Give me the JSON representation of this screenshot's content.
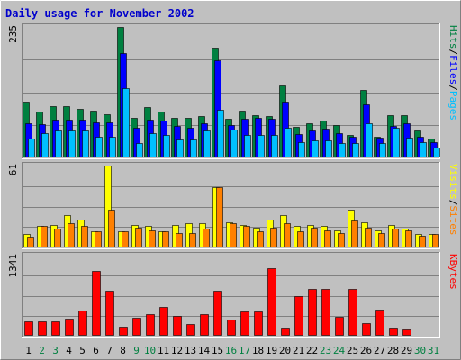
{
  "chart_data": {
    "type": "bar",
    "title": "Daily usage for November 2002",
    "categories": [
      "1",
      "2",
      "3",
      "4",
      "5",
      "6",
      "7",
      "8",
      "9",
      "10",
      "11",
      "12",
      "13",
      "14",
      "15",
      "16",
      "17",
      "18",
      "19",
      "20",
      "21",
      "22",
      "23",
      "24",
      "25",
      "26",
      "27",
      "28",
      "29",
      "30",
      "31"
    ],
    "weekend_days": [
      "2",
      "3",
      "9",
      "10",
      "16",
      "17",
      "23",
      "24",
      "30",
      "31"
    ],
    "colors": {
      "hits": "#008040",
      "files": "#0000ff",
      "pages": "#00c0ff",
      "visits": "#ffff00",
      "sites": "#ff8000",
      "kbytes": "#ff0000",
      "weekday_label": "#000000",
      "weekend_label": "#008040",
      "title": "#0000cc"
    },
    "panels": [
      {
        "id": "hits",
        "ymax_label": "235",
        "ylim": [
          0,
          235
        ],
        "legend": [
          {
            "text": "Pages",
            "color": "#00c0ff"
          },
          {
            "text": "/",
            "color": "#000000"
          },
          {
            "text": "Files",
            "color": "#0000ff"
          },
          {
            "text": "/",
            "color": "#000000"
          },
          {
            "text": "Hits",
            "color": "#008040"
          }
        ],
        "series": [
          {
            "name": "Hits",
            "color": "#008040",
            "values": [
              100,
              82,
              93,
              93,
              88,
              84,
              78,
              235,
              72,
              90,
              82,
              72,
              72,
              74,
              197,
              70,
              84,
              76,
              74,
              130,
              55,
              62,
              66,
              58,
              40,
              122,
              38,
              76,
              76,
              48,
              34
            ]
          },
          {
            "name": "Files",
            "color": "#0000ff",
            "values": [
              62,
              60,
              68,
              68,
              68,
              64,
              64,
              188,
              54,
              68,
              66,
              56,
              54,
              62,
              175,
              58,
              70,
              72,
              70,
              100,
              42,
              48,
              52,
              44,
              38,
              96,
              36,
              56,
              62,
              38,
              28
            ]
          },
          {
            "name": "Pages",
            "color": "#00c0ff",
            "values": [
              34,
              44,
              48,
              48,
              48,
              38,
              38,
              124,
              26,
              44,
              40,
              32,
              32,
              48,
              86,
              50,
              40,
              40,
              40,
              54,
              28,
              30,
              30,
              26,
              26,
              62,
              26,
              54,
              36,
              28,
              18
            ]
          }
        ]
      },
      {
        "id": "visits",
        "ymax_label": "61",
        "ylim": [
          0,
          61
        ],
        "legend": [
          {
            "text": "Sites",
            "color": "#ff8000"
          },
          {
            "text": "/",
            "color": "#000000"
          },
          {
            "text": "Visits",
            "color": "#ffff00"
          }
        ],
        "series": [
          {
            "name": "Visits",
            "color": "#ffff00",
            "values": [
              10,
              16,
              17,
              24,
              21,
              12,
              61,
              12,
              17,
              16,
              12,
              17,
              18,
              18,
              45,
              19,
              17,
              15,
              21,
              24,
              16,
              17,
              16,
              13,
              28,
              19,
              13,
              17,
              14,
              10,
              10
            ]
          },
          {
            "name": "Sites",
            "color": "#ff8000",
            "values": [
              8,
              16,
              14,
              18,
              16,
              12,
              28,
              12,
              15,
              13,
              12,
              11,
              11,
              14,
              45,
              18,
              16,
              12,
              15,
              18,
              12,
              15,
              13,
              11,
              20,
              15,
              11,
              14,
              13,
              9,
              10
            ]
          }
        ]
      },
      {
        "id": "kbytes",
        "ymax_label": "1341",
        "ylim": [
          0,
          1341
        ],
        "legend": [
          {
            "text": "KBytes",
            "color": "#ff0000"
          }
        ],
        "series": [
          {
            "name": "KBytes",
            "color": "#ff0000",
            "values": [
              240,
              240,
              240,
              290,
              420,
              1090,
              760,
              150,
              300,
              360,
              480,
              330,
              200,
              360,
              750,
              270,
              410,
              410,
              1130,
              140,
              670,
              780,
              790,
              320,
              790,
              210,
              440,
              140,
              110,
              0,
              0
            ]
          }
        ]
      }
    ]
  }
}
